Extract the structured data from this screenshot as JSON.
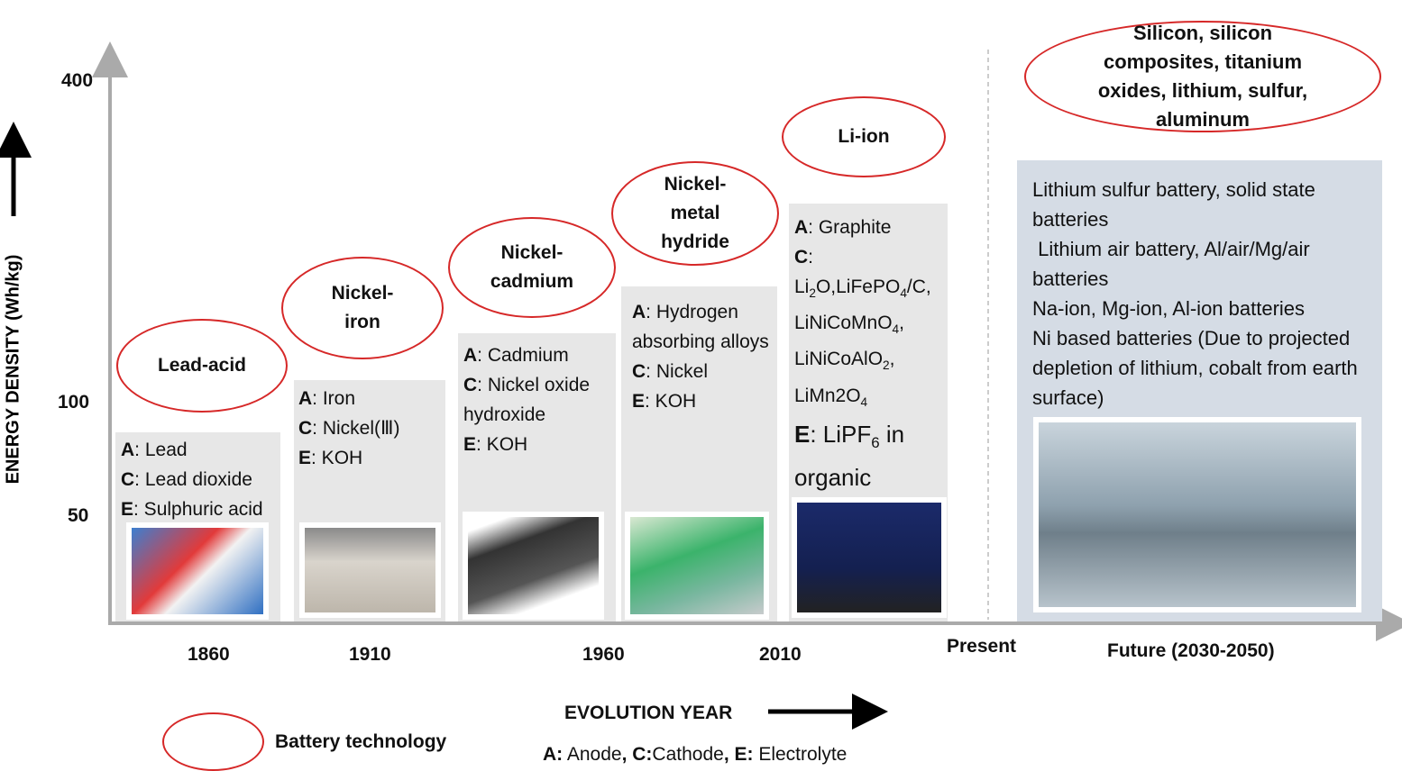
{
  "axes": {
    "y_label": "ENERGY DENSITY (Wh/kg)",
    "y_ticks": [
      "400",
      "100",
      "50"
    ],
    "x_label": "EVOLUTION YEAR",
    "x_ticks": [
      "1860",
      "1910",
      "1960",
      "2010",
      "Present",
      "Future (2030-2050)"
    ]
  },
  "technologies": [
    {
      "name": "Lead-acid",
      "components": [
        {
          "key": "A",
          "text": ": Lead"
        },
        {
          "key": "C",
          "text": ": Lead dioxide"
        },
        {
          "key": "E",
          "text": ": Sulphuric acid"
        }
      ]
    },
    {
      "name": "Nickel-iron",
      "components": [
        {
          "key": "A",
          "text": ": Iron"
        },
        {
          "key": "C",
          "text": ": Nickel(Ⅲ)"
        },
        {
          "key": "E",
          "text": ": KOH"
        }
      ]
    },
    {
      "name": "Nickel-cadmium",
      "components": [
        {
          "key": "A",
          "text": ": Cadmium"
        },
        {
          "key": "C",
          "text": ": Nickel oxide hydroxide"
        },
        {
          "key": "E",
          "text": ": KOH"
        }
      ]
    },
    {
      "name": "Nickel-metal hydride",
      "components": [
        {
          "key": "A",
          "text": ": Hydrogen absorbing alloys"
        },
        {
          "key": "C",
          "text": ": Nickel"
        },
        {
          "key": "E",
          "text": ": KOH"
        }
      ]
    },
    {
      "name": "Li-ion",
      "components": [
        {
          "key": "A",
          "text": ": Graphite"
        },
        {
          "key": "C",
          "text": ":"
        },
        {
          "text": [
            "Li",
            "2",
            "O,LiFePO",
            "4",
            "/C,"
          ]
        },
        {
          "text": [
            "LiNiCoMnO",
            "4",
            ","
          ]
        },
        {
          "text": [
            "LiNiCoAlO",
            "2",
            ","
          ]
        },
        {
          "text": [
            "LiMn2O",
            "4"
          ]
        },
        {
          "key": "E",
          "text": [
            ": LiPF",
            "6",
            " in organic solution"
          ]
        }
      ]
    }
  ],
  "future": {
    "materials": "Silicon, silicon composites, titanium oxides, lithium, sulfur, aluminum",
    "batteries": [
      "Lithium sulfur battery, solid state batteries",
      " Lithium air battery, Al/air/Mg/air batteries",
      "Na-ion, Mg-ion, Al-ion batteries",
      "Ni based batteries (Due to projected depletion of lithium, cobalt from earth surface)"
    ]
  },
  "legend": {
    "label": "Battery technology",
    "key": [
      "A:",
      " Anode",
      ", C:",
      "Cathode",
      ", E:",
      " Electrolyte"
    ]
  }
}
